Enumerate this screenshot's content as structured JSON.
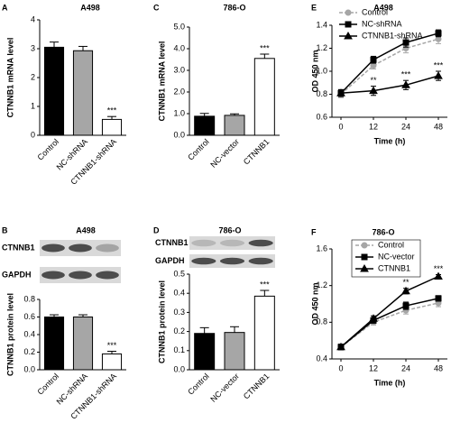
{
  "chart_data": [
    {
      "panel": "A",
      "type": "bar",
      "title": "A498",
      "ylabel": "CTNNB1 mRNA level",
      "categories": [
        "Control",
        "NC-shRNA",
        "CTNNB1-shRNA"
      ],
      "values": [
        3.05,
        2.93,
        0.55
      ],
      "errors": [
        0.18,
        0.15,
        0.1
      ],
      "colors": [
        "#000000",
        "#a6a6a6",
        "#ffffff"
      ],
      "value_annotations": [
        null,
        null,
        "***"
      ],
      "ylim": [
        0,
        4
      ],
      "yticks": [
        0,
        1,
        2,
        3,
        4
      ]
    },
    {
      "panel": "B",
      "type": "bar",
      "title": "A498",
      "blot": [
        "CTNNB1",
        "GAPDH"
      ],
      "ylabel": "CTNNB1 protein level",
      "categories": [
        "Control",
        "NC-shRNA",
        "CTNNB1-shRNA"
      ],
      "values": [
        0.6,
        0.6,
        0.18
      ],
      "errors": [
        0.025,
        0.025,
        0.03
      ],
      "colors": [
        "#000000",
        "#a6a6a6",
        "#ffffff"
      ],
      "value_annotations": [
        null,
        null,
        "***"
      ],
      "ylim": [
        0,
        0.8
      ],
      "yticks": [
        {
          "value": 0,
          "label": "0.0"
        },
        0.2,
        0.4,
        0.6,
        0.8
      ]
    },
    {
      "panel": "C",
      "type": "bar",
      "title": "786-O",
      "ylabel": "CTNNB1 mRNA level",
      "categories": [
        "Control",
        "NC-vector",
        "CTNNB1"
      ],
      "values": [
        0.88,
        0.92,
        3.55
      ],
      "errors": [
        0.13,
        0.07,
        0.2
      ],
      "colors": [
        "#000000",
        "#a6a6a6",
        "#ffffff"
      ],
      "value_annotations": [
        null,
        null,
        "***"
      ],
      "ylim": [
        0,
        5
      ],
      "yticks": [
        {
          "value": 0,
          "label": "0.0"
        },
        {
          "value": 1,
          "label": "1.0"
        },
        {
          "value": 2,
          "label": "2.0"
        },
        {
          "value": 3,
          "label": "3.0"
        },
        {
          "value": 4,
          "label": "4.0"
        },
        {
          "value": 5,
          "label": "5.0"
        }
      ]
    },
    {
      "panel": "D",
      "type": "bar",
      "title": "786-O",
      "blot": [
        "CTNNB1",
        "GAPDH"
      ],
      "ylabel": "CTNNB1 protein level",
      "categories": [
        "Control",
        "NC-vector",
        "CTNNB1"
      ],
      "values": [
        0.19,
        0.195,
        0.385
      ],
      "errors": [
        0.03,
        0.03,
        0.03
      ],
      "colors": [
        "#000000",
        "#a6a6a6",
        "#ffffff"
      ],
      "value_annotations": [
        null,
        null,
        "***"
      ],
      "ylim": [
        0,
        0.5
      ],
      "yticks": [
        {
          "value": 0,
          "label": "0.0"
        },
        0.1,
        0.2,
        0.3,
        0.4,
        0.5
      ]
    },
    {
      "panel": "E",
      "type": "line",
      "title": "A498",
      "ylabel": "OD 450 nm",
      "xlabel": "Time (h)",
      "categories": [
        0,
        12,
        24,
        48
      ],
      "series": [
        {
          "name": "Control",
          "color": "#a6a6a6",
          "marker": "circle",
          "dashed": true,
          "values": [
            0.8,
            1.05,
            1.2,
            1.28
          ],
          "errors": [
            0.03,
            0.03,
            0.04,
            0.04
          ]
        },
        {
          "name": "NC-shRNA",
          "color": "#000000",
          "marker": "square",
          "dashed": false,
          "values": [
            0.81,
            1.1,
            1.25,
            1.33
          ],
          "errors": [
            0.03,
            0.03,
            0.04,
            0.03
          ]
        },
        {
          "name": "CTNNB1-shRNA",
          "color": "#000000",
          "marker": "triangle",
          "dashed": false,
          "values": [
            0.81,
            0.83,
            0.88,
            0.96
          ],
          "errors": [
            0.03,
            0.04,
            0.04,
            0.04
          ]
        }
      ],
      "annotations": [
        null,
        "**",
        "***",
        "***"
      ],
      "ylim": [
        0.6,
        1.4
      ],
      "yticks": [
        0.6,
        0.8,
        {
          "value": 1,
          "label": "1.0"
        },
        1.2,
        1.4
      ]
    },
    {
      "panel": "F",
      "type": "line",
      "title": "786-O",
      "ylabel": "OD 450 nm",
      "xlabel": "Time (h)",
      "categories": [
        0,
        12,
        24,
        48
      ],
      "series": [
        {
          "name": "Control",
          "color": "#a6a6a6",
          "marker": "circle",
          "dashed": true,
          "values": [
            0.53,
            0.8,
            0.93,
            1.01
          ],
          "errors": [
            0.03,
            0.03,
            0.04,
            0.04
          ]
        },
        {
          "name": "NC-vector",
          "color": "#000000",
          "marker": "square",
          "dashed": false,
          "values": [
            0.53,
            0.82,
            0.98,
            1.06
          ],
          "errors": [
            0.03,
            0.03,
            0.04,
            0.03
          ]
        },
        {
          "name": "CTNNB1",
          "color": "#000000",
          "marker": "triangle",
          "dashed": false,
          "values": [
            0.53,
            0.84,
            1.14,
            1.3
          ],
          "errors": [
            0.03,
            0.03,
            0.03,
            0.02
          ]
        }
      ],
      "annotations": [
        null,
        null,
        "**",
        "***"
      ],
      "ylim": [
        0.4,
        1.6
      ],
      "yticks": [
        0.4,
        0.8,
        1.2,
        1.6
      ]
    }
  ]
}
